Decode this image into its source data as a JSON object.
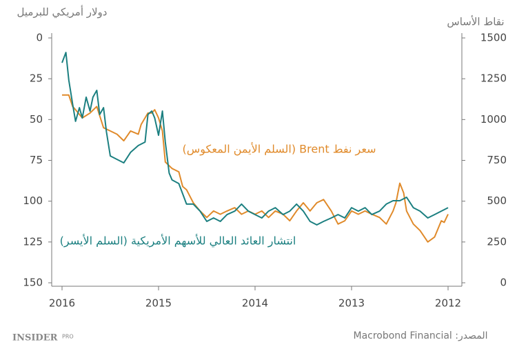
{
  "chart_data": {
    "type": "line",
    "y_label": "دولار أمريكي للبرميل",
    "y2_label": "نقاط الأساس",
    "xlim": [
      2016,
      2012
    ],
    "xticks": [
      2016,
      2015,
      2014,
      2013,
      2012
    ],
    "ylim": [
      0,
      150
    ],
    "yticks": [
      0,
      25,
      50,
      75,
      100,
      125,
      150
    ],
    "yinvert": true,
    "y2lim": [
      0,
      1500
    ],
    "y2ticks": [
      0,
      250,
      500,
      750,
      1000,
      1250,
      1500
    ],
    "series": [
      {
        "name": "سعر نفط Brent (السلم الأيمن المعكوس)",
        "color": "#e08a2a",
        "x": [
          2016,
          2015.93,
          2015.89,
          2015.86,
          2015.79,
          2015.71,
          2015.64,
          2015.57,
          2015.5,
          2015.43,
          2015.36,
          2015.29,
          2015.21,
          2015.18,
          2015.11,
          2015.07,
          2015.04,
          2015,
          2014.96,
          2014.93,
          2014.86,
          2014.79,
          2014.75,
          2014.71,
          2014.64,
          2014.57,
          2014.5,
          2014.43,
          2014.36,
          2014.29,
          2014.21,
          2014.14,
          2014.07,
          2014,
          2013.93,
          2013.86,
          2013.79,
          2013.71,
          2013.64,
          2013.57,
          2013.5,
          2013.43,
          2013.36,
          2013.29,
          2013.21,
          2013.14,
          2013.07,
          2013,
          2012.93,
          2012.86,
          2012.79,
          2012.71,
          2012.64,
          2012.57,
          2012.54,
          2012.5,
          2012.46,
          2012.43,
          2012.36,
          2012.29,
          2012.21,
          2012.14,
          2012.07,
          2012.04,
          2012
        ],
        "values": [
          35,
          35,
          42,
          44,
          49,
          46,
          42,
          55,
          57,
          59,
          63,
          57,
          59,
          53,
          46,
          46,
          44,
          49,
          57,
          76,
          80,
          82,
          91,
          93,
          101,
          106,
          110,
          106,
          108,
          106,
          104,
          108,
          106,
          108,
          106,
          110,
          106,
          108,
          112,
          106,
          101,
          106,
          101,
          99,
          106,
          114,
          112,
          106,
          108,
          106,
          108,
          110,
          114,
          106,
          101,
          89,
          95,
          106,
          114,
          118,
          125,
          122,
          112,
          113,
          108
        ]
      },
      {
        "name": "انتشار العائد العالي للأسهم الأمريكية (السلم الأيسر)",
        "color": "#1b7f80",
        "axis": "y2",
        "x": [
          2016,
          2015.96,
          2015.93,
          2015.89,
          2015.86,
          2015.82,
          2015.79,
          2015.75,
          2015.71,
          2015.68,
          2015.64,
          2015.61,
          2015.57,
          2015.54,
          2015.5,
          2015.43,
          2015.36,
          2015.29,
          2015.21,
          2015.14,
          2015.11,
          2015.07,
          2015.04,
          2015,
          2014.96,
          2014.93,
          2014.89,
          2014.86,
          2014.79,
          2014.75,
          2014.71,
          2014.64,
          2014.57,
          2014.5,
          2014.43,
          2014.36,
          2014.29,
          2014.21,
          2014.14,
          2014.07,
          2014,
          2013.93,
          2013.86,
          2013.79,
          2013.71,
          2013.64,
          2013.57,
          2013.5,
          2013.43,
          2013.36,
          2013.29,
          2013.21,
          2013.14,
          2013.07,
          2013,
          2012.93,
          2012.86,
          2012.79,
          2012.71,
          2012.64,
          2012.57,
          2012.5,
          2012.43,
          2012.36,
          2012.29,
          2012.21,
          2012.14,
          2012.07,
          2012
        ],
        "values": [
          1348,
          1411,
          1242,
          1094,
          989,
          1073,
          1010,
          1137,
          1052,
          1137,
          1179,
          1031,
          1073,
          925,
          777,
          756,
          735,
          799,
          841,
          862,
          1031,
          1052,
          1010,
          904,
          1052,
          862,
          672,
          630,
          608,
          545,
          482,
          482,
          439,
          376,
          397,
          376,
          418,
          439,
          482,
          439,
          418,
          397,
          439,
          460,
          418,
          439,
          482,
          439,
          376,
          355,
          376,
          397,
          418,
          397,
          460,
          439,
          460,
          418,
          439,
          482,
          503,
          503,
          524,
          460,
          439,
          397,
          418,
          439,
          460
        ]
      }
    ],
    "brand": "INSIDER",
    "brand_suffix": "PRO",
    "source": "المصدر: Macrobond Financial"
  }
}
